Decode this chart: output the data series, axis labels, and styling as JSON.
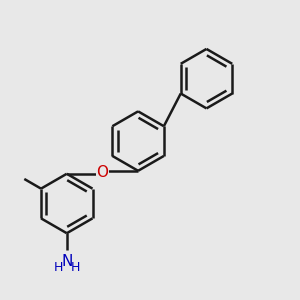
{
  "background_color": "#e8e8e8",
  "bond_color": "#1a1a1a",
  "bond_width": 1.8,
  "O_color": "#cc0000",
  "N_color": "#0000bb",
  "C_color": "#1a1a1a",
  "fig_width": 3.0,
  "fig_height": 3.0,
  "dpi": 100,
  "xlim": [
    0,
    10
  ],
  "ylim": [
    0,
    10
  ]
}
